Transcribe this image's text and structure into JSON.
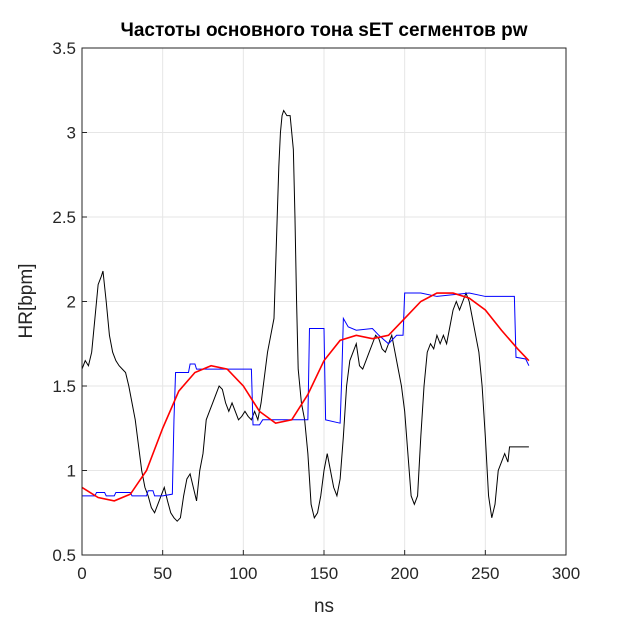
{
  "chart_data": {
    "type": "line",
    "title": "Частоты основного тона sET сегментов pw",
    "x_label": "ns",
    "y_label": "HR[bpm]",
    "xlim": [
      0,
      300
    ],
    "xticks": [
      0,
      50,
      100,
      150,
      200,
      250,
      300
    ],
    "ylim": [
      0.5,
      3.5
    ],
    "yticks": [
      0.5,
      1,
      1.5,
      2,
      2.5,
      3,
      3.5
    ],
    "grid": true,
    "series": [
      {
        "color": "#000000",
        "x": [
          0,
          2,
          4,
          6,
          8,
          10,
          12,
          13,
          15,
          17,
          19,
          21,
          23,
          25,
          27,
          29,
          31,
          33,
          35,
          37,
          39,
          41,
          43,
          45,
          47,
          49,
          51,
          53,
          55,
          57,
          59,
          61,
          63,
          65,
          67,
          69,
          71,
          73,
          75,
          77,
          79,
          81,
          83,
          85,
          87,
          89,
          91,
          93,
          95,
          97,
          99,
          101,
          103,
          105,
          107,
          109,
          111,
          113,
          115,
          117,
          119,
          120,
          121,
          122,
          123,
          124,
          125,
          127,
          129,
          131,
          132,
          133,
          134,
          136,
          138,
          140,
          142,
          144,
          146,
          148,
          150,
          152,
          154,
          156,
          158,
          160,
          162,
          164,
          166,
          168,
          170,
          172,
          174,
          176,
          178,
          180,
          182,
          184,
          186,
          188,
          190,
          192,
          194,
          196,
          198,
          200,
          202,
          204,
          206,
          208,
          210,
          212,
          214,
          216,
          218,
          220,
          222,
          224,
          226,
          228,
          230,
          232,
          234,
          236,
          238,
          240,
          242,
          244,
          246,
          248,
          250,
          252,
          254,
          256,
          258,
          260,
          262,
          264,
          265,
          270,
          277
        ],
        "values": [
          1.6,
          1.65,
          1.62,
          1.7,
          1.9,
          2.1,
          2.15,
          2.18,
          2.0,
          1.8,
          1.7,
          1.65,
          1.62,
          1.6,
          1.58,
          1.5,
          1.4,
          1.3,
          1.15,
          1.0,
          0.9,
          0.85,
          0.78,
          0.75,
          0.8,
          0.85,
          0.9,
          0.82,
          0.75,
          0.72,
          0.7,
          0.72,
          0.85,
          0.95,
          0.98,
          0.9,
          0.82,
          1.0,
          1.1,
          1.3,
          1.35,
          1.4,
          1.45,
          1.5,
          1.48,
          1.4,
          1.35,
          1.4,
          1.35,
          1.3,
          1.32,
          1.35,
          1.32,
          1.3,
          1.35,
          1.3,
          1.4,
          1.55,
          1.7,
          1.8,
          1.9,
          2.2,
          2.5,
          2.8,
          3.0,
          3.1,
          3.13,
          3.1,
          3.1,
          2.9,
          2.5,
          2.0,
          1.6,
          1.4,
          1.3,
          1.1,
          0.8,
          0.72,
          0.75,
          0.85,
          1.0,
          1.1,
          1.0,
          0.9,
          0.85,
          0.95,
          1.2,
          1.5,
          1.65,
          1.7,
          1.75,
          1.62,
          1.6,
          1.65,
          1.7,
          1.75,
          1.8,
          1.78,
          1.72,
          1.7,
          1.75,
          1.8,
          1.7,
          1.6,
          1.5,
          1.35,
          1.1,
          0.85,
          0.8,
          0.85,
          1.2,
          1.5,
          1.7,
          1.75,
          1.72,
          1.8,
          1.75,
          1.8,
          1.75,
          1.85,
          1.95,
          2.0,
          1.95,
          2.0,
          2.05,
          2.0,
          1.9,
          1.8,
          1.7,
          1.5,
          1.2,
          0.85,
          0.72,
          0.8,
          1.0,
          1.05,
          1.1,
          1.05,
          1.14,
          1.14,
          1.14
        ]
      },
      {
        "color": "#0000ff",
        "x": [
          0,
          8,
          9,
          14,
          15,
          20,
          21,
          30,
          31,
          40,
          41,
          44,
          45,
          50,
          56,
          57,
          58,
          66,
          67,
          70,
          71,
          80,
          105,
          106,
          110,
          112,
          140,
          141,
          150,
          151,
          160,
          161,
          162,
          165,
          170,
          180,
          184,
          190,
          195,
          199,
          200,
          210,
          220,
          240,
          250,
          268,
          269,
          275,
          277
        ],
        "values": [
          0.85,
          0.85,
          0.87,
          0.87,
          0.85,
          0.85,
          0.87,
          0.87,
          0.85,
          0.85,
          0.88,
          0.88,
          0.85,
          0.85,
          0.86,
          1.3,
          1.58,
          1.58,
          1.63,
          1.63,
          1.6,
          1.6,
          1.6,
          1.27,
          1.27,
          1.3,
          1.3,
          1.84,
          1.84,
          1.3,
          1.28,
          1.55,
          1.9,
          1.85,
          1.83,
          1.84,
          1.8,
          1.75,
          1.8,
          1.8,
          2.05,
          2.05,
          2.03,
          2.05,
          2.03,
          2.03,
          1.67,
          1.66,
          1.62
        ]
      },
      {
        "color": "#ff0000",
        "x": [
          0,
          10,
          20,
          30,
          40,
          50,
          60,
          70,
          80,
          90,
          100,
          110,
          120,
          130,
          140,
          150,
          160,
          170,
          180,
          190,
          200,
          210,
          220,
          230,
          240,
          250,
          260,
          270,
          277
        ],
        "values": [
          0.9,
          0.84,
          0.82,
          0.86,
          1.0,
          1.25,
          1.47,
          1.58,
          1.62,
          1.6,
          1.5,
          1.35,
          1.28,
          1.3,
          1.45,
          1.65,
          1.77,
          1.8,
          1.78,
          1.8,
          1.9,
          2.0,
          2.05,
          2.05,
          2.02,
          1.95,
          1.83,
          1.72,
          1.65
        ]
      }
    ]
  }
}
